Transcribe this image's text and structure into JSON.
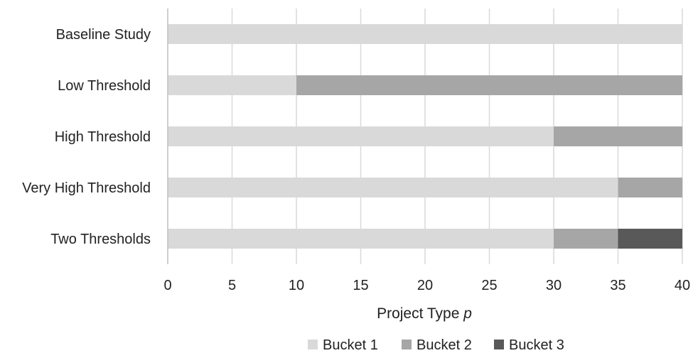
{
  "chart_data": {
    "type": "bar",
    "orientation": "horizontal",
    "stacked": true,
    "title": "",
    "xlabel": "Project Type ",
    "xlabel_var": "p",
    "ylabel": "",
    "xlim": [
      0,
      40
    ],
    "xticks": [
      0,
      5,
      10,
      15,
      20,
      25,
      30,
      35,
      40
    ],
    "grid": "vertical",
    "legend_position": "bottom",
    "categories": [
      "Baseline Study",
      "Low Threshold",
      "High Threshold",
      "Very High Threshold",
      "Two Thresholds"
    ],
    "series": [
      {
        "name": "Bucket 1",
        "color": "#d9d9d9",
        "values": [
          40,
          10,
          30,
          35,
          30
        ]
      },
      {
        "name": "Bucket 2",
        "color": "#a6a6a6",
        "values": [
          0,
          30,
          10,
          5,
          5
        ]
      },
      {
        "name": "Bucket 3",
        "color": "#595959",
        "values": [
          0,
          0,
          0,
          0,
          5
        ]
      }
    ]
  }
}
